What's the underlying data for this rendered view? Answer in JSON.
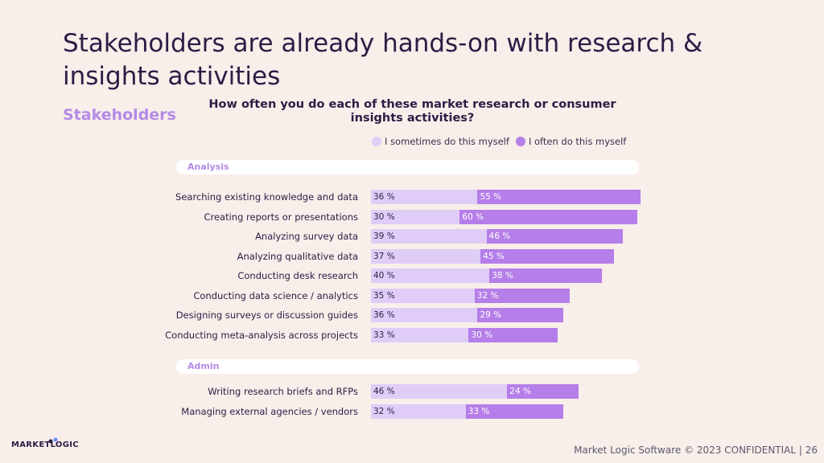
{
  "slide": {
    "title": "Stakeholders are already hands-on with research & insights activities",
    "section_label": "Stakeholders",
    "question": "How often you do each of these market research or consumer insights activities?",
    "footer": "Market Logic Software © 2023 CONFIDENTIAL | 26",
    "logo_text": "MARKETLOGIC"
  },
  "colors": {
    "sometimes": "#e0cdf7",
    "often": "#b57ee8",
    "accent": "#b48ae6"
  },
  "chart_data": {
    "type": "bar",
    "orientation": "horizontal",
    "stacked": true,
    "title": "How often you do each of these market research or consumer insights activities?",
    "legend": [
      "I sometimes do this myself",
      "I often do this myself"
    ],
    "legend_position": "top",
    "value_format": "{v} %",
    "groups": [
      {
        "name": "Analysis",
        "categories": [
          "Searching existing knowledge and data",
          "Creating reports or presentations",
          "Analyzing survey data",
          "Analyzing qualitative data",
          "Conducting desk research",
          "Conducting data science / analytics",
          "Designing surveys or discussion guides",
          "Conducting meta-analysis across projects"
        ],
        "series": [
          {
            "name": "I sometimes do this myself",
            "values": [
              36,
              30,
              39,
              37,
              40,
              35,
              36,
              33
            ]
          },
          {
            "name": "I often do this myself",
            "values": [
              55,
              60,
              46,
              45,
              38,
              32,
              29,
              30
            ]
          }
        ]
      },
      {
        "name": "Admin",
        "categories": [
          "Writing research briefs and RFPs",
          "Managing external agencies / vendors"
        ],
        "series": [
          {
            "name": "I sometimes do this myself",
            "values": [
              46,
              32
            ]
          },
          {
            "name": "I often do this myself",
            "values": [
              24,
              33
            ]
          }
        ]
      }
    ],
    "xlim": [
      0,
      100
    ]
  }
}
